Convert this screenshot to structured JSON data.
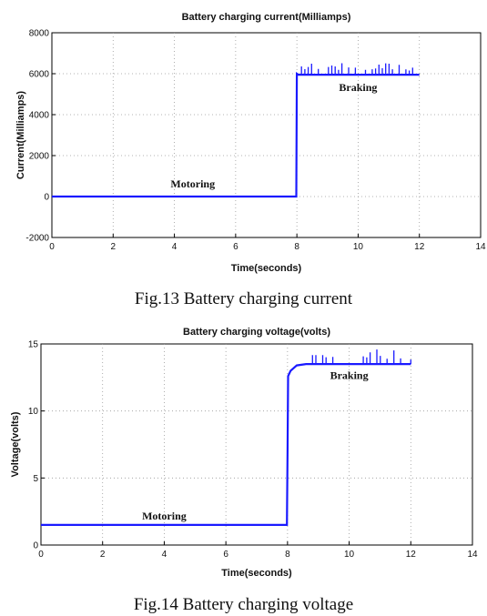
{
  "chart_data": [
    {
      "type": "line",
      "title": "Battery charging current(Milliamps)",
      "xlabel": "Time(seconds)",
      "ylabel": "Current(Milliamps)",
      "xlim": [
        0,
        14
      ],
      "ylim": [
        -2000,
        8000
      ],
      "xticks": [
        "0",
        "2",
        "4",
        "6",
        "8",
        "10",
        "12",
        "14"
      ],
      "yticks": [
        "-2000",
        "0",
        "2000",
        "4000",
        "6000",
        "8000"
      ],
      "grid": true,
      "series": [
        {
          "color": "#1a1aff",
          "x": [
            0,
            7.98,
            8.0,
            8.05,
            12.0
          ],
          "y": [
            0,
            0,
            6000,
            5950,
            5950
          ]
        }
      ],
      "annotations": [
        {
          "text": "Motoring",
          "x": 4.6,
          "y": 450
        },
        {
          "text": "Braking",
          "x": 10.0,
          "y": 5150
        }
      ],
      "caption": "Fig.13 Battery charging current"
    },
    {
      "type": "line",
      "title": "Battery charging voltage(volts)",
      "xlabel": "Time(seconds)",
      "ylabel": "Voltage(volts)",
      "xlim": [
        0,
        14
      ],
      "ylim": [
        0,
        15
      ],
      "xticks": [
        "0",
        "2",
        "4",
        "6",
        "8",
        "10",
        "12",
        "14"
      ],
      "yticks": [
        "0",
        "5",
        "10",
        "15"
      ],
      "grid": true,
      "series": [
        {
          "color": "#1a1aff",
          "x": [
            0,
            7.98,
            8.0,
            8.02,
            8.1,
            8.3,
            8.6,
            12.0
          ],
          "y": [
            1.5,
            1.5,
            7.0,
            12.6,
            13.0,
            13.4,
            13.5,
            13.5
          ]
        }
      ],
      "annotations": [
        {
          "text": "Motoring",
          "x": 4.0,
          "y": 1.9
        },
        {
          "text": "Braking",
          "x": 10.0,
          "y": 12.4
        }
      ],
      "caption": "Fig.14 Battery charging voltage"
    }
  ]
}
